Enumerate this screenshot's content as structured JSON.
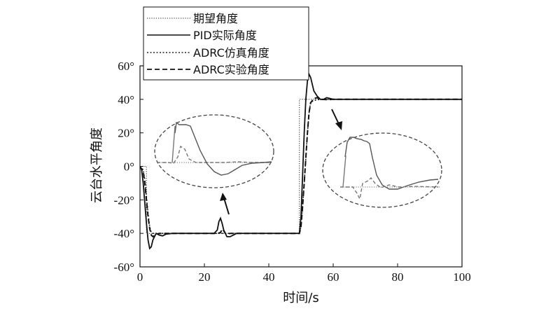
{
  "chart_data": {
    "type": "line",
    "xlabel": "时间/s",
    "ylabel": "云台水平角度",
    "xlim": [
      0,
      100
    ],
    "ylim": [
      -60,
      60
    ],
    "x_ticks": [
      "0",
      "20",
      "40",
      "60",
      "80",
      "100"
    ],
    "y_ticks": [
      "60°",
      "40°",
      "20°",
      "0°",
      "-20°",
      "-40°",
      "-60°"
    ],
    "grid": false,
    "legend_position": "top",
    "legend": [
      "期望角度",
      "PID实际角度",
      "ADRC仿真角度",
      "ADRC实验角度"
    ],
    "series": [
      {
        "name": "期望角度",
        "x": [
          0,
          2,
          2,
          49.5,
          49.5,
          100
        ],
        "y": [
          0,
          0,
          -40,
          -40,
          40,
          40
        ]
      },
      {
        "name": "PID实际角度",
        "x": [
          0,
          0.5,
          1,
          1.5,
          2,
          2.5,
          3,
          3.5,
          4,
          5,
          6,
          7,
          8,
          10,
          15,
          20,
          23,
          24,
          24.5,
          25,
          25.5,
          26,
          27,
          28,
          29,
          30,
          32,
          35,
          40,
          45,
          49.5,
          50,
          50.5,
          51,
          51.5,
          52,
          52.5,
          53,
          53.5,
          54,
          55,
          56,
          57,
          58,
          60,
          65,
          70,
          80,
          90,
          100
        ],
        "y": [
          0,
          -2,
          -10,
          -22,
          -34,
          -44,
          -49,
          -48,
          -44,
          -40,
          -41,
          -41.5,
          -40.5,
          -40,
          -40,
          -40,
          -40,
          -38,
          -33,
          -31,
          -34,
          -38,
          -42,
          -42,
          -41,
          -40,
          -40,
          -40,
          -40,
          -40,
          -40,
          -30,
          -5,
          20,
          40,
          51,
          55,
          53,
          49,
          45,
          42,
          40,
          40,
          41,
          40,
          40,
          40,
          40,
          40,
          40
        ]
      },
      {
        "name": "ADRC仿真角度",
        "x": [
          0,
          1,
          1.5,
          2,
          2.5,
          3,
          3.5,
          4,
          6,
          10,
          20,
          40,
          49.5,
          50,
          50.5,
          51,
          51.5,
          52,
          52.5,
          53,
          55,
          60,
          70,
          80,
          90,
          100
        ],
        "y": [
          0,
          -2,
          -8,
          -18,
          -28,
          -36,
          -39.5,
          -40,
          -40,
          -40,
          -40,
          -40,
          -40,
          -36,
          -24,
          -10,
          5,
          20,
          32,
          38.5,
          39.8,
          40,
          40,
          40,
          40,
          40
        ]
      },
      {
        "name": "ADRC实验角度",
        "x": [
          0,
          1,
          1.5,
          2,
          2.5,
          3,
          3.5,
          4,
          5,
          6,
          8,
          10,
          20,
          24,
          25,
          25.5,
          26,
          26.5,
          27,
          28,
          30,
          40,
          49.5,
          50,
          50.5,
          51,
          51.5,
          52,
          52.5,
          53,
          54,
          55,
          56,
          58,
          60,
          70,
          80,
          90,
          100
        ],
        "y": [
          0,
          -3,
          -10,
          -20,
          -30,
          -37,
          -41,
          -42,
          -40.5,
          -40,
          -40,
          -40,
          -40,
          -40,
          -39.5,
          -37.5,
          -38.5,
          -40,
          -40.5,
          -40,
          -40,
          -40,
          -40,
          -36,
          -24,
          -10,
          5,
          20,
          32,
          38,
          40.5,
          41,
          40,
          39.8,
          40,
          40,
          40,
          40,
          40
        ]
      }
    ]
  }
}
